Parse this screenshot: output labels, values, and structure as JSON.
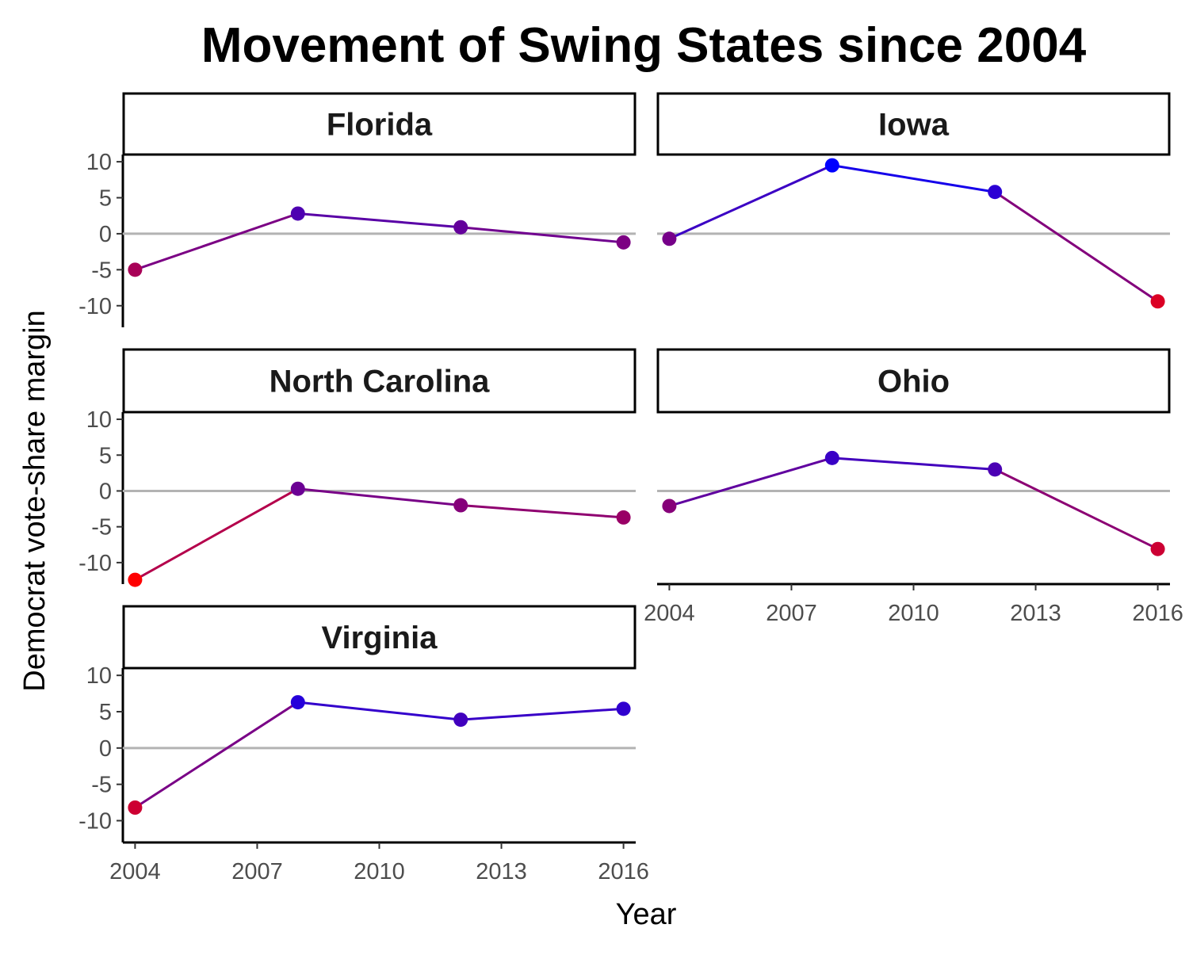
{
  "chart_data": {
    "type": "line",
    "title": "Movement of Swing States since 2004",
    "xlabel": "Year",
    "ylabel": "Democrat vote-share margin",
    "x": [
      2004,
      2008,
      2012,
      2016
    ],
    "x_ticks": [
      "2004",
      "2007",
      "2010",
      "2013",
      "2016"
    ],
    "y_ticks": [
      "10",
      "5",
      "0",
      "-5",
      "-10"
    ],
    "xlim": [
      2003.7,
      2016.3
    ],
    "ylim": [
      -13,
      11
    ],
    "reference_line": 0,
    "grid": false,
    "legend": "none",
    "color_scale": {
      "democrat": "#0000ff",
      "republican": "#ff0000"
    },
    "reference_line_color": "#b3b3b3",
    "series": [
      {
        "name": "Florida",
        "values": [
          -5.0,
          2.8,
          0.9,
          -1.2
        ]
      },
      {
        "name": "Iowa",
        "values": [
          -0.7,
          9.5,
          5.8,
          -9.4
        ]
      },
      {
        "name": "North Carolina",
        "values": [
          -12.4,
          0.3,
          -2.0,
          -3.7
        ]
      },
      {
        "name": "Ohio",
        "values": [
          -2.1,
          4.6,
          3.0,
          -8.1
        ]
      },
      {
        "name": "Virginia",
        "values": [
          -8.2,
          6.3,
          3.9,
          5.4
        ]
      }
    ]
  }
}
